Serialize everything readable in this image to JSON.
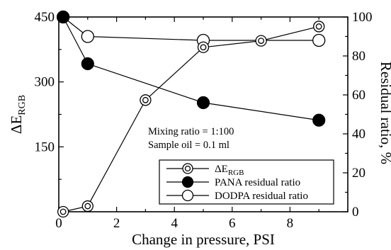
{
  "chart_data": {
    "type": "line",
    "xlabel": "Change in pressure, PSI",
    "ylabel_left": "ΔE",
    "ylabel_left_subscript": "RGB",
    "ylabel_right": "Residual ratio,  %",
    "xlim": [
      0,
      10
    ],
    "ylim_left": [
      0,
      450
    ],
    "ylim_right": [
      0,
      100
    ],
    "x_ticks": [
      0,
      2,
      4,
      6,
      8
    ],
    "y_left_ticks": [
      150,
      300,
      450
    ],
    "y_right_ticks": [
      0,
      20,
      40,
      60,
      80,
      100
    ],
    "grid": false,
    "legend_position": "bottom-right",
    "annotations": [
      "Mixing ratio = 1:100",
      "Sample oil = 0.1 ml"
    ],
    "series": [
      {
        "name": "ΔE",
        "name_subscript": "RGB",
        "axis": "left",
        "marker": "double-circle",
        "x": [
          0.15,
          1.0,
          3.0,
          5.0,
          7.0,
          9.0
        ],
        "y": [
          0,
          13,
          258,
          380,
          395,
          428
        ]
      },
      {
        "name": "PANA residual ratio",
        "axis": "right",
        "marker": "filled-circle",
        "x": [
          0.15,
          1.0,
          5.0,
          9.0
        ],
        "y": [
          100,
          76,
          56,
          47
        ]
      },
      {
        "name": "DODPA residual ratio",
        "axis": "right",
        "marker": "open-circle",
        "x": [
          0.15,
          1.0,
          5.0,
          9.0
        ],
        "y": [
          100,
          90,
          88,
          88
        ]
      }
    ]
  }
}
